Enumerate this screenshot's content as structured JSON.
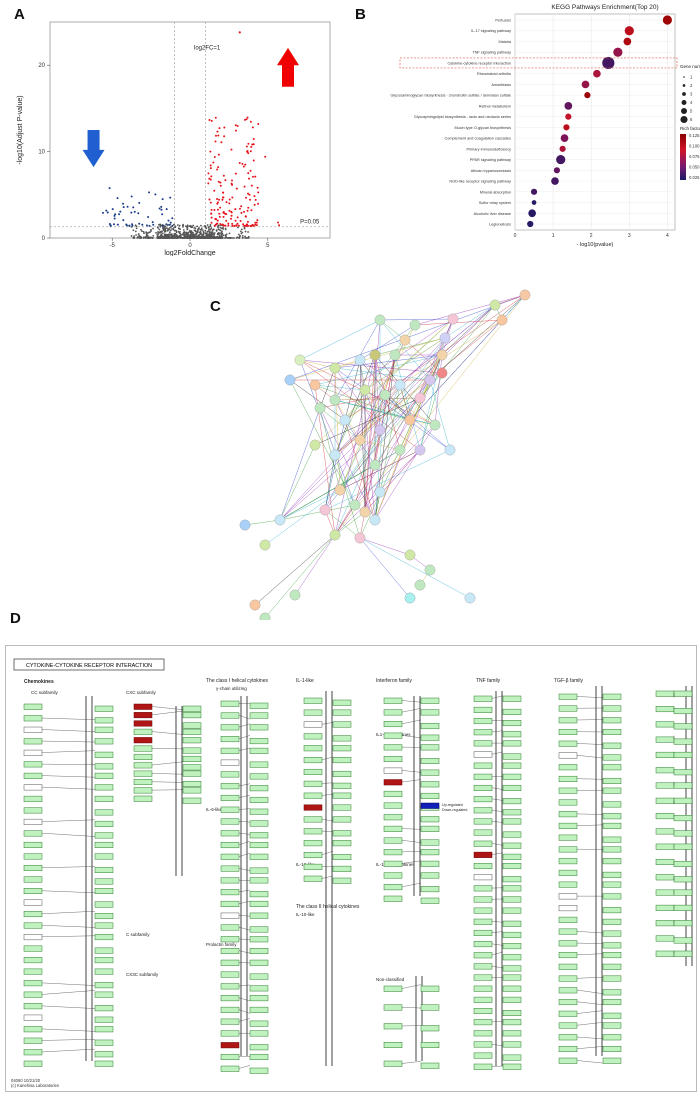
{
  "labels": {
    "a": "A",
    "b": "B",
    "c": "C",
    "d": "D"
  },
  "volcano": {
    "xlabel": "log2FoldChange",
    "ylabel": "-log10(Adjust P-value)",
    "fc_annot": "log2FC=1",
    "p_annot": "P=0.05",
    "x_ticks": [
      "-5",
      "0",
      "5"
    ],
    "y_ticks": [
      "0",
      "10",
      "20"
    ],
    "xlim": [
      -9,
      9
    ],
    "ylim": [
      0,
      25
    ],
    "up_color": "#e8141c",
    "down_color": "#1a3a8a",
    "ns_color": "#555555"
  },
  "chart_data": {
    "type": "scatter",
    "title": "KEGG Pathways Enrichment(Top 20)",
    "xlabel": "- log10(pvalue)",
    "x_ticks": [
      "0",
      "1",
      "2",
      "3",
      "4"
    ],
    "xlim": [
      0,
      4.2
    ],
    "categories": [
      "Pertussis",
      "IL-17 signaling pathway",
      "Malaria",
      "TNF signaling pathway",
      "Cytokine-cytokine receptor interaction",
      "Rheumatoid arthritis",
      "Amoebiasis",
      "Glycosaminoglycan biosynthesis - chondroitin sulfate / dermatan sulfate",
      "Retinol metabolism",
      "Glycosphingolipid biosynthesis - lacto and neolacto series",
      "Mucin type O-glycan biosynthesis",
      "Complement and coagulation cascades",
      "Primary immunodeficiency",
      "PPAR signaling pathway",
      "African trypanosomiasis",
      "NOD-like receptor signaling pathway",
      "Mineral absorption",
      "Sulfur relay system",
      "Alcoholic liver disease",
      "Legionellosis"
    ],
    "x": [
      4.0,
      3.0,
      2.95,
      2.7,
      2.45,
      2.15,
      1.85,
      1.9,
      1.4,
      1.4,
      1.35,
      1.3,
      1.25,
      1.2,
      1.1,
      1.05,
      0.5,
      0.5,
      0.45,
      0.4
    ],
    "gene_number": [
      4,
      4,
      3,
      4,
      6,
      3,
      3,
      2,
      3,
      2,
      2,
      3,
      2,
      4,
      2,
      3,
      2,
      1,
      3,
      2
    ],
    "rich_factor": [
      0.12,
      0.1,
      0.11,
      0.07,
      0.04,
      0.08,
      0.07,
      0.12,
      0.05,
      0.09,
      0.1,
      0.06,
      0.08,
      0.04,
      0.05,
      0.04,
      0.04,
      0.03,
      0.03,
      0.03
    ],
    "highlight": "Cytokine-cytokine receptor interaction",
    "legend_size_title": "Gene number",
    "legend_size_values": [
      "1",
      "2",
      "3",
      "4",
      "5",
      "6"
    ],
    "legend_color_title": "Rich factor",
    "legend_color_values": [
      "0.125",
      "0.100",
      "0.075",
      "0.050",
      "0.025"
    ],
    "grid": true,
    "legend_position": "right"
  },
  "ppi": {
    "edge_colors": [
      "#3fa33f",
      "#9a3fbf",
      "#3b4fd1",
      "#d1b33b",
      "#222222",
      "#d13b3b",
      "#3bb3d1"
    ]
  },
  "kegg": {
    "title": "CYTOKINE-CYTOKINE RECEPTOR INTERACTION",
    "footer1": "04060 10/21/20",
    "footer2": "(c) Kanehisa Laboratories",
    "groups": [
      "Chemokines",
      "CC subfamily",
      "CXC subfamily",
      "C subfamily",
      "CX3C subfamily",
      "The class I helical cytokines",
      "γ-chain utilizing",
      "IL-6-like",
      "IL-12-like",
      "Prolactin family",
      "IL-1-like",
      "The class II helical cytokines",
      "IL-10-like",
      "Interferon family",
      "IL1-like cytokines",
      "IL-17-like cytokines",
      "Non-classified",
      "TNF family",
      "TGF-β family"
    ],
    "legend_red": "Up-regulated",
    "legend_blue": "Down-regulated"
  }
}
